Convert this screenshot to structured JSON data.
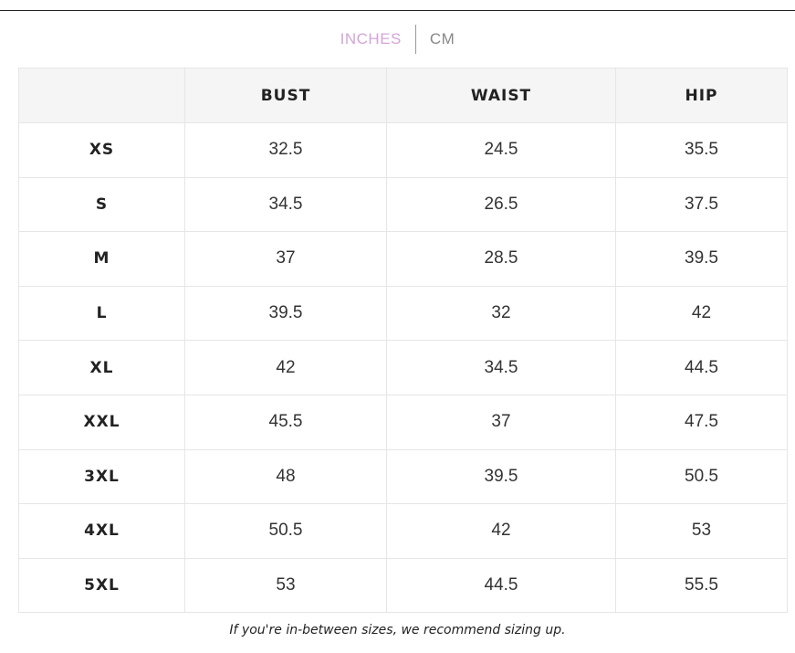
{
  "unit_toggle": {
    "options": [
      "INCHES",
      "CM"
    ],
    "active": 0
  },
  "table": {
    "header": [
      "BUST",
      "WAIST",
      "HIP"
    ],
    "rows": [
      [
        "XS",
        "32.5",
        "24.5",
        "35.5"
      ],
      [
        "S",
        "34.5",
        "26.5",
        "37.5"
      ],
      [
        "M",
        "37",
        "28.5",
        "39.5"
      ],
      [
        "L",
        "39.5",
        "32",
        "42"
      ],
      [
        "XL",
        "42",
        "34.5",
        "44.5"
      ],
      [
        "XXL",
        "45.5",
        "37",
        "47.5"
      ],
      [
        "3XL",
        "48",
        "39.5",
        "50.5"
      ],
      [
        "4XL",
        "50.5",
        "42",
        "53"
      ],
      [
        "5XL",
        "53",
        "44.5",
        "55.5"
      ]
    ]
  },
  "note": "If you're in-between sizes, we recommend sizing up."
}
